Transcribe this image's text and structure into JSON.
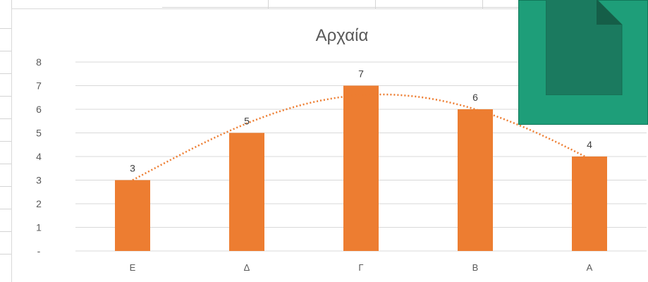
{
  "chart_data": {
    "type": "bar",
    "title": "Αρχαία",
    "categories": [
      "Ε",
      "Δ",
      "Γ",
      "Β",
      "Α"
    ],
    "values": [
      3,
      5,
      7,
      6,
      4
    ],
    "data_labels": [
      "3",
      "5",
      "7",
      "6",
      "4"
    ],
    "ylim": [
      0,
      8
    ],
    "y_ticks": [
      "-",
      "1",
      "2",
      "3",
      "4",
      "5",
      "6",
      "7",
      "8"
    ],
    "grid": true,
    "trendline": {
      "type": "polynomial",
      "style": "dotted",
      "values": [
        3.0,
        5.4,
        6.6,
        6.0,
        3.9
      ]
    },
    "colors": {
      "bar": "#ed7d31",
      "trendline": "#ed7d31",
      "grid": "#d9d9d9",
      "text": "#595959"
    }
  },
  "overlay": {
    "icon": "document-icon",
    "colors": {
      "background": "#1e9e79",
      "icon": "#1b7a5f"
    }
  }
}
